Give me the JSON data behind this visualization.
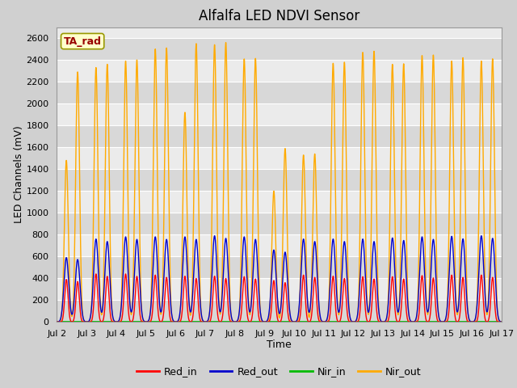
{
  "title": "Alfalfa LED NDVI Sensor",
  "xlabel": "Time",
  "ylabel": "LED Channels (mV)",
  "legend_label": "TA_rad",
  "ylim": [
    0,
    2700
  ],
  "xlim_start": 2,
  "xlim_end": 17,
  "x_ticks": [
    2,
    3,
    4,
    5,
    6,
    7,
    8,
    9,
    10,
    11,
    12,
    13,
    14,
    15,
    16,
    17
  ],
  "x_tick_labels": [
    "Jul 2",
    "Jul 3",
    "Jul 4",
    "Jul 5",
    "Jul 6",
    "Jul 7",
    "Jul 8",
    "Jul 9",
    "Jul 10",
    "Jul 11",
    "Jul 12",
    "Jul 13",
    "Jul 14",
    "Jul 15",
    "Jul 16",
    "Jul 17"
  ],
  "colors": {
    "Red_in": "#ff0000",
    "Red_out": "#0000cc",
    "Nir_in": "#00bb00",
    "Nir_out": "#ffaa00"
  },
  "fig_bg": "#d0d0d0",
  "plot_bg": "#ebebeb",
  "legend_box_color": "#ffffcc",
  "legend_box_edge": "#999900",
  "legend_text_color": "#990000",
  "day_peaks": [
    {
      "day": 2.0,
      "ri": 390,
      "ro": 590,
      "no": 1480,
      "no2": 2290,
      "has2": true
    },
    {
      "day": 3.0,
      "ri": 440,
      "ro": 760,
      "no": 2330,
      "no2": 2360,
      "has2": true
    },
    {
      "day": 4.0,
      "ri": 440,
      "ro": 780,
      "no": 2390,
      "no2": 2400,
      "has2": true
    },
    {
      "day": 5.0,
      "ri": 430,
      "ro": 780,
      "no": 2500,
      "no2": 2510,
      "has2": true
    },
    {
      "day": 6.0,
      "ri": 420,
      "ro": 780,
      "no": 1920,
      "no2": 2550,
      "has2": true
    },
    {
      "day": 7.0,
      "ri": 420,
      "ro": 790,
      "no": 2540,
      "no2": 2560,
      "has2": true
    },
    {
      "day": 8.0,
      "ri": 415,
      "ro": 780,
      "no": 2410,
      "no2": 2415,
      "has2": true
    },
    {
      "day": 9.0,
      "ri": 380,
      "ro": 660,
      "no": 1200,
      "no2": 1590,
      "has2": true
    },
    {
      "day": 10.0,
      "ri": 430,
      "ro": 760,
      "no": 1530,
      "no2": 1540,
      "has2": true
    },
    {
      "day": 11.0,
      "ri": 420,
      "ro": 760,
      "no": 2370,
      "no2": 2380,
      "has2": true
    },
    {
      "day": 12.0,
      "ri": 415,
      "ro": 760,
      "no": 2470,
      "no2": 2480,
      "has2": true
    },
    {
      "day": 13.0,
      "ri": 415,
      "ro": 770,
      "no": 2360,
      "no2": 2365,
      "has2": true
    },
    {
      "day": 14.0,
      "ri": 425,
      "ro": 780,
      "no": 2440,
      "no2": 2445,
      "has2": true
    },
    {
      "day": 15.0,
      "ri": 430,
      "ro": 785,
      "no": 2390,
      "no2": 2420,
      "has2": true
    },
    {
      "day": 16.0,
      "ri": 430,
      "ro": 790,
      "no": 2390,
      "no2": 2410,
      "has2": true
    }
  ]
}
